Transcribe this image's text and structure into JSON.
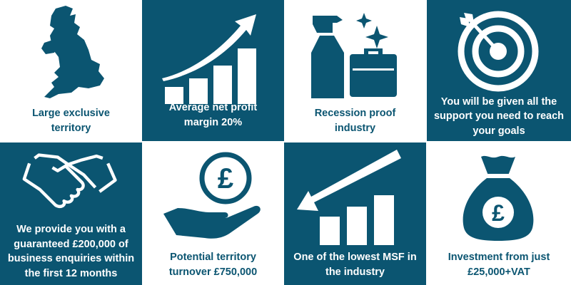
{
  "colors": {
    "brand": "#0b5571",
    "background": "#ffffff"
  },
  "tiles": [
    {
      "icon": "uk-map-icon",
      "lines": [
        "Large exclusive",
        "territory"
      ]
    },
    {
      "icon": "rising-bar-chart-icon",
      "lines": [
        "Average net profit",
        "margin 20%"
      ]
    },
    {
      "icon": "spray-bottle-briefcase-icon",
      "lines": [
        "Recession proof",
        "industry"
      ]
    },
    {
      "icon": "target-arrow-icon",
      "lines": [
        "You will be given all the",
        "support you need to reach",
        "your goals"
      ]
    },
    {
      "icon": "handshake-icon",
      "lines": [
        "We provide you with a",
        "guaranteed £200,000 of",
        "business enquiries within",
        "the first 12 months"
      ]
    },
    {
      "icon": "hand-pound-coin-icon",
      "lines": [
        "Potential territory",
        "turnover £750,000"
      ]
    },
    {
      "icon": "falling-arrow-bar-chart-icon",
      "lines": [
        "One of the lowest MSF in",
        "the industry"
      ]
    },
    {
      "icon": "money-bag-pound-icon",
      "lines": [
        "Investment from just",
        "£25,000+VAT"
      ]
    }
  ]
}
